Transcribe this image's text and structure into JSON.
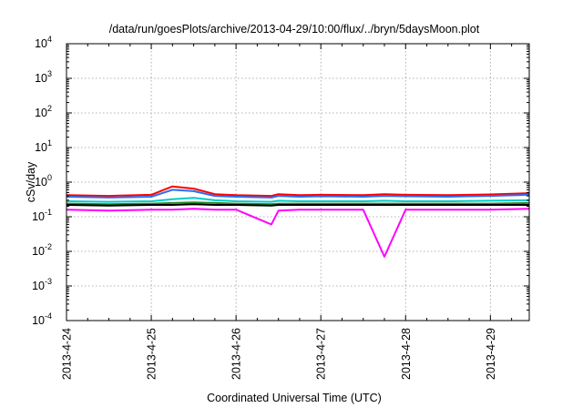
{
  "chart_data": {
    "type": "line",
    "title": "/data/run/goesPlots/archive/2013-04-29/10:00/flux/../bryn/5daysMoon.plot",
    "xlabel": "Coordinated Universal Time (UTC)",
    "ylabel": "cSv/day",
    "yscale": "log",
    "ylim": [
      0.0001,
      10000
    ],
    "xlim": [
      "2013-04-24 00:00",
      "2013-04-29 11:00"
    ],
    "grid": true,
    "legend": "none",
    "x_tick_labels": [
      "2013-4-24",
      "2013-4-25",
      "2013-4-26",
      "2013-4-27",
      "2013-4-28",
      "2013-4-29"
    ],
    "y_ticks": [
      {
        "base": "10",
        "exp": "-4"
      },
      {
        "base": "10",
        "exp": "-3"
      },
      {
        "base": "10",
        "exp": "-2"
      },
      {
        "base": "10",
        "exp": "-1"
      },
      {
        "base": "10",
        "exp": "0"
      },
      {
        "base": "10",
        "exp": "1"
      },
      {
        "base": "10",
        "exp": "2"
      },
      {
        "base": "10",
        "exp": "3"
      },
      {
        "base": "10",
        "exp": "4"
      }
    ],
    "x": [
      "2013-04-24 00:00",
      "2013-04-24 12:00",
      "2013-04-25 00:00",
      "2013-04-25 06:00",
      "2013-04-25 12:00",
      "2013-04-25 18:00",
      "2013-04-26 00:00",
      "2013-04-26 10:00",
      "2013-04-26 12:00",
      "2013-04-26 18:00",
      "2013-04-27 00:00",
      "2013-04-27 12:00",
      "2013-04-27 18:00",
      "2013-04-28 00:00",
      "2013-04-28 12:00",
      "2013-04-29 00:00",
      "2013-04-29 11:00"
    ],
    "series": [
      {
        "color": "#ff0000",
        "values": [
          0.42,
          0.4,
          0.43,
          0.75,
          0.65,
          0.45,
          0.42,
          0.4,
          0.45,
          0.42,
          0.43,
          0.42,
          0.45,
          0.43,
          0.42,
          0.44,
          0.48
        ]
      },
      {
        "color": "#2d6cf0",
        "values": [
          0.38,
          0.36,
          0.38,
          0.6,
          0.55,
          0.4,
          0.38,
          0.36,
          0.4,
          0.38,
          0.39,
          0.38,
          0.4,
          0.39,
          0.38,
          0.4,
          0.43
        ]
      },
      {
        "color": "#00cccc",
        "values": [
          0.28,
          0.27,
          0.28,
          0.32,
          0.35,
          0.3,
          0.28,
          0.27,
          0.29,
          0.28,
          0.28,
          0.28,
          0.29,
          0.28,
          0.28,
          0.29,
          0.3
        ]
      },
      {
        "color": "#228b22",
        "values": [
          0.24,
          0.23,
          0.24,
          0.25,
          0.26,
          0.25,
          0.24,
          0.23,
          0.24,
          0.24,
          0.24,
          0.24,
          0.24,
          0.24,
          0.24,
          0.24,
          0.25
        ]
      },
      {
        "color": "#000000",
        "values": [
          0.22,
          0.21,
          0.22,
          0.22,
          0.23,
          0.22,
          0.22,
          0.21,
          0.22,
          0.22,
          0.22,
          0.22,
          0.22,
          0.22,
          0.22,
          0.22,
          0.22
        ]
      },
      {
        "color": "#ff00ff",
        "values": [
          0.16,
          0.15,
          0.16,
          0.16,
          0.17,
          0.16,
          0.16,
          0.06,
          0.15,
          0.16,
          0.16,
          0.16,
          0.007,
          0.16,
          0.16,
          0.16,
          0.17
        ]
      }
    ]
  }
}
